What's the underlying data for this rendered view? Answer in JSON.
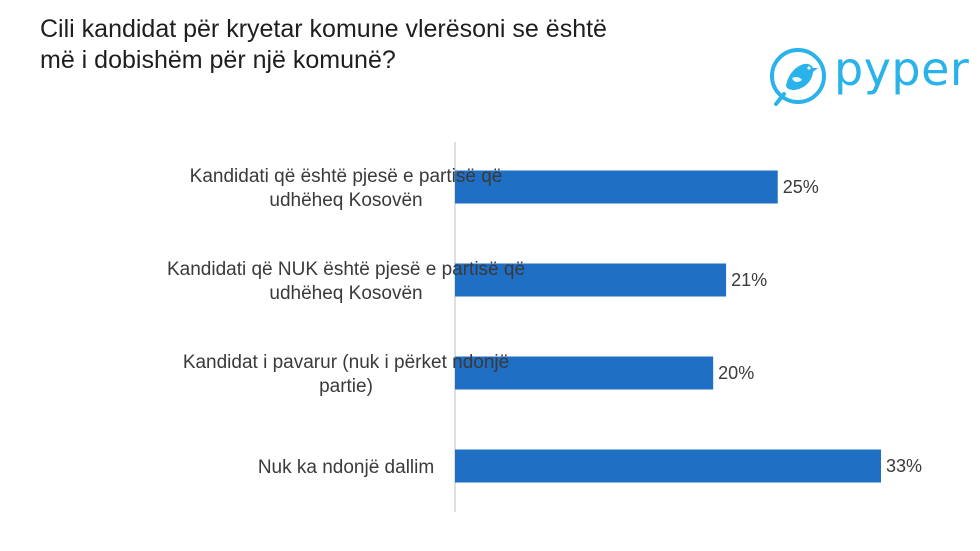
{
  "title_lines": [
    "Cili kandidat për kryetar komune vlerësoni se është",
    "më i dobishëm për një komunë?"
  ],
  "logo": {
    "text": "pyper",
    "icon": "bird-icon",
    "color": "#29b3ea"
  },
  "colors": {
    "bar": "#1f6fc5",
    "axis": "#bfbfbf",
    "text": "#3a3a3a"
  },
  "chart_data": {
    "type": "bar",
    "orientation": "horizontal",
    "categories": [
      [
        "Kandidati që është pjesë e partisë që",
        "udhëheq Kosovën"
      ],
      [
        "Kandidati që NUK është pjesë e partisë që",
        "udhëheq Kosovën"
      ],
      [
        "Kandidat i pavarur (nuk i përket ndonjë",
        "partie)"
      ],
      [
        "Nuk ka ndonjë dallim"
      ]
    ],
    "values": [
      25,
      21,
      20,
      33
    ],
    "value_labels": [
      "25%",
      "21%",
      "20%",
      "33%"
    ],
    "unit": "%",
    "xlim": [
      0,
      33
    ],
    "grid": false
  }
}
